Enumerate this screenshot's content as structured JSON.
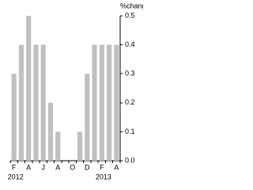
{
  "chart_data": {
    "type": "bar",
    "y_axis_label": "%change",
    "categories": [
      "F",
      null,
      "A",
      null,
      "J",
      null,
      "A",
      null,
      "O",
      null,
      "D",
      null,
      "F",
      null,
      "A"
    ],
    "years": [
      "2012",
      "2013"
    ],
    "values": [
      0.3,
      0.4,
      0.5,
      0.4,
      0.4,
      0.2,
      0.1,
      0,
      0,
      0.1,
      0.3,
      0.4,
      0.4,
      0.4,
      0.4
    ],
    "color": "#c0c0c0",
    "ylim": [
      0,
      0.5
    ],
    "yticks": [
      {
        "value": 0,
        "label": "0.0"
      },
      0.1,
      0.2,
      0.3,
      0.4,
      0.5
    ],
    "y_axis_side": "right"
  }
}
